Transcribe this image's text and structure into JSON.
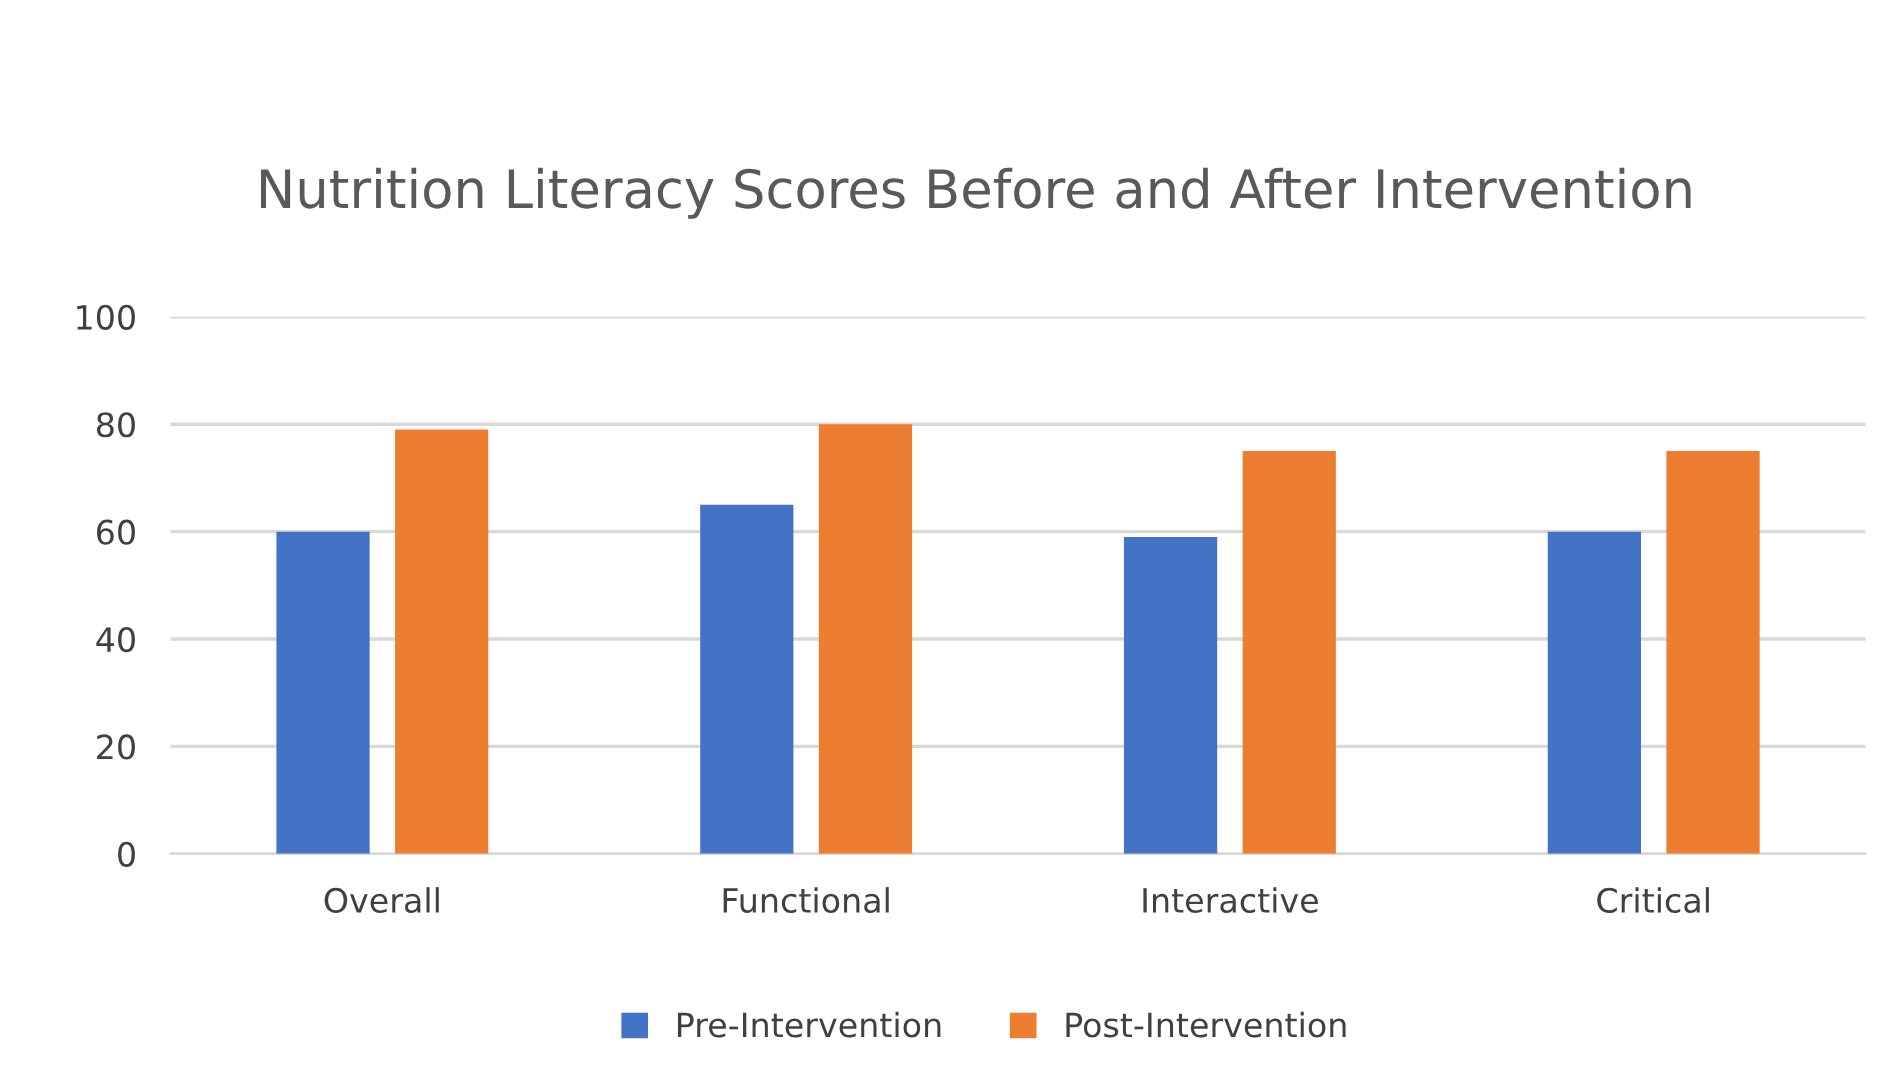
{
  "chart_data": {
    "type": "bar",
    "title": "Nutrition Literacy Scores Before and After Intervention",
    "categories": [
      "Overall",
      "Functional",
      "Interactive",
      "Critical"
    ],
    "series": [
      {
        "name": "Pre-Intervention",
        "color": "#4472c4",
        "values": [
          60,
          65,
          59,
          60
        ]
      },
      {
        "name": "Post-Intervention",
        "color": "#ed7d31",
        "values": [
          79,
          80,
          75,
          75
        ]
      }
    ],
    "ylim": [
      0,
      100
    ],
    "yticks": [
      0,
      20,
      40,
      60,
      80,
      100
    ],
    "grid": "y",
    "legend": "bottom"
  }
}
